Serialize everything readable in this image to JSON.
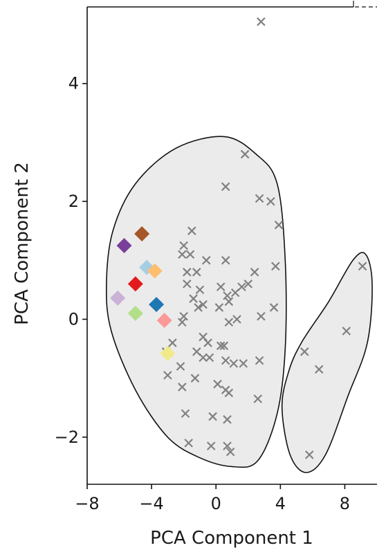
{
  "chart_data": {
    "type": "scatter",
    "title": "",
    "xlabel": "PCA Component 1",
    "ylabel": "PCA Component 2",
    "xlim": [
      -8,
      10
    ],
    "ylim": [
      -2.8,
      5.3
    ],
    "xticks": [
      -8,
      -4,
      0,
      4,
      8
    ],
    "xtick_labels": [
      "−8",
      "−4",
      "0",
      "4",
      "8"
    ],
    "yticks": [
      -2,
      0,
      2,
      4
    ],
    "ytick_labels": [
      "−2",
      "0",
      "2",
      "4"
    ],
    "grid": false,
    "colors": {
      "background_points": "#808080",
      "region_fill": "#ebebeb",
      "region_edge": "#111111",
      "axis": "#111111"
    },
    "regions": [
      {
        "polygon": [
          [
            -6.8,
            0.6
          ],
          [
            -6.4,
            1.5
          ],
          [
            -5,
            2.3
          ],
          [
            -2.5,
            2.9
          ],
          [
            0.5,
            3.1
          ],
          [
            2.5,
            2.8
          ],
          [
            3.8,
            2.3
          ],
          [
            4.3,
            1
          ],
          [
            4.3,
            -0.5
          ],
          [
            3.8,
            -1.6
          ],
          [
            2.6,
            -2.4
          ],
          [
            1,
            -2.5
          ],
          [
            -1,
            -2.35
          ],
          [
            -3,
            -2
          ],
          [
            -5,
            -1.2
          ],
          [
            -6.5,
            -0.2
          ]
        ]
      },
      {
        "polygon": [
          [
            5.3,
            -0.4
          ],
          [
            7,
            0.3
          ],
          [
            8.5,
            1
          ],
          [
            9.3,
            1.1
          ],
          [
            9.7,
            0.6
          ],
          [
            9.4,
            -0.4
          ],
          [
            8.2,
            -1.3
          ],
          [
            6.8,
            -2.3
          ],
          [
            5.6,
            -2.6
          ],
          [
            4.6,
            -2.3
          ],
          [
            4.1,
            -1.5
          ],
          [
            4.5,
            -0.9
          ]
        ]
      }
    ],
    "series": [
      {
        "marker": "x",
        "color": "#808080",
        "points": [
          [
            2.8,
            5.05
          ],
          [
            1.8,
            2.8
          ],
          [
            0.6,
            2.25
          ],
          [
            2.7,
            2.05
          ],
          [
            3.4,
            2
          ],
          [
            3.9,
            1.6
          ],
          [
            -1.5,
            1.5
          ],
          [
            -2,
            1.25
          ],
          [
            -1.6,
            1.1
          ],
          [
            -2.1,
            1.1
          ],
          [
            -0.6,
            1
          ],
          [
            0.6,
            1
          ],
          [
            -1.8,
            0.8
          ],
          [
            -1.2,
            0.8
          ],
          [
            3.7,
            0.9
          ],
          [
            -1.8,
            0.6
          ],
          [
            -1,
            0.5
          ],
          [
            2.4,
            0.8
          ],
          [
            -1.4,
            0.35
          ],
          [
            0.3,
            0.55
          ],
          [
            0.7,
            0.4
          ],
          [
            1.6,
            0.55
          ],
          [
            2,
            0.6
          ],
          [
            -1.1,
            0.2
          ],
          [
            -0.8,
            0.25
          ],
          [
            0.2,
            0.2
          ],
          [
            0.8,
            0.3
          ],
          [
            1.2,
            0.45
          ],
          [
            -2.1,
            -0.05
          ],
          [
            -2,
            0.05
          ],
          [
            3.6,
            0.2
          ],
          [
            -0.8,
            -0.3
          ],
          [
            0.8,
            -0.05
          ],
          [
            1.3,
            0
          ],
          [
            2.8,
            0.05
          ],
          [
            -2.7,
            -0.4
          ],
          [
            -1.2,
            -0.55
          ],
          [
            -0.5,
            -0.4
          ],
          [
            0.3,
            -0.45
          ],
          [
            0.5,
            -0.45
          ],
          [
            -3.1,
            -0.55
          ],
          [
            -2.2,
            -0.8
          ],
          [
            -0.8,
            -0.65
          ],
          [
            -0.4,
            -0.65
          ],
          [
            0.6,
            -0.7
          ],
          [
            1.1,
            -0.75
          ],
          [
            1.7,
            -0.75
          ],
          [
            2.7,
            -0.7
          ],
          [
            -3,
            -0.95
          ],
          [
            -1.3,
            -1
          ],
          [
            0.1,
            -1.1
          ],
          [
            0.6,
            -1.2
          ],
          [
            0.8,
            -1.25
          ],
          [
            -2.1,
            -1.15
          ],
          [
            -1.9,
            -1.6
          ],
          [
            -0.2,
            -1.65
          ],
          [
            0.7,
            -1.7
          ],
          [
            2.6,
            -1.35
          ],
          [
            -1.7,
            -2.1
          ],
          [
            -0.3,
            -2.15
          ],
          [
            0.7,
            -2.15
          ],
          [
            0.9,
            -2.25
          ],
          [
            9.1,
            0.9
          ],
          [
            8.1,
            -0.2
          ],
          [
            5.5,
            -0.55
          ],
          [
            6.4,
            -0.85
          ],
          [
            5.8,
            -2.3
          ]
        ]
      },
      {
        "marker": "diamond",
        "color": "#7a3f9a",
        "points": [
          [
            -5.7,
            1.25
          ]
        ]
      },
      {
        "marker": "diamond",
        "color": "#a65628",
        "points": [
          [
            -4.6,
            1.45
          ]
        ]
      },
      {
        "marker": "diamond",
        "color": "#a6cee3",
        "points": [
          [
            -4.3,
            0.88
          ]
        ]
      },
      {
        "marker": "diamond",
        "color": "#fdbf6f",
        "points": [
          [
            -3.8,
            0.82
          ]
        ]
      },
      {
        "marker": "diamond",
        "color": "#e31a1c",
        "points": [
          [
            -5,
            0.6
          ]
        ]
      },
      {
        "marker": "diamond",
        "color": "#cab2d6",
        "points": [
          [
            -6.1,
            0.36
          ]
        ]
      },
      {
        "marker": "diamond",
        "color": "#1f78b4",
        "points": [
          [
            -3.7,
            0.25
          ]
        ]
      },
      {
        "marker": "diamond",
        "color": "#b2df8a",
        "points": [
          [
            -5,
            0.1
          ]
        ]
      },
      {
        "marker": "diamond",
        "color": "#fb9a99",
        "points": [
          [
            -3.2,
            -0.02
          ]
        ]
      },
      {
        "marker": "diamond",
        "color": "#f0ea8a",
        "points": [
          [
            -3,
            -0.58
          ]
        ]
      }
    ]
  }
}
